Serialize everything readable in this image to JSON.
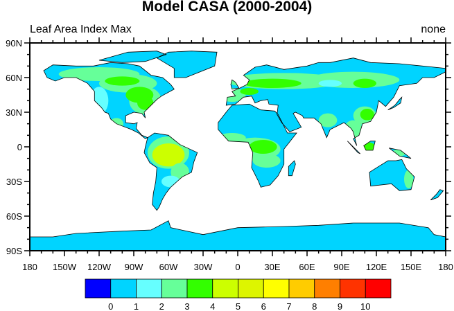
{
  "title": "Model CASA (2000-2004)",
  "left_string": "Leaf Area Index Max",
  "right_string": "none",
  "map": {
    "projection": "cylindrical-equidistant",
    "lon_range": [
      -180,
      180
    ],
    "lat_range": [
      -90,
      90
    ],
    "lat_labels": [
      "90N",
      "60N",
      "30N",
      "0",
      "30S",
      "60S",
      "90S"
    ],
    "lon_labels": [
      "180",
      "150W",
      "120W",
      "90W",
      "60W",
      "30W",
      "0",
      "30E",
      "60E",
      "90E",
      "120E",
      "150E",
      "180"
    ]
  },
  "colorbar": {
    "colors": [
      "#0000ff",
      "#00d4ff",
      "#66ffff",
      "#66ff99",
      "#33ff00",
      "#ccff00",
      "#ddf500",
      "#ffff00",
      "#ffcc00",
      "#ff7f00",
      "#ff3300",
      "#ff0000"
    ],
    "labels": [
      "0",
      "1",
      "2",
      "3",
      "4",
      "5",
      "6",
      "7",
      "8",
      "9",
      "10"
    ]
  }
}
